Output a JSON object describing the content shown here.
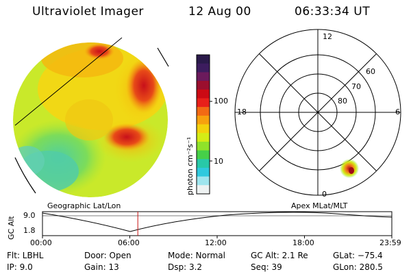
{
  "header": {
    "instrument": "Ultraviolet Imager",
    "date": "12 Aug 00",
    "time": "06:33:34 UT"
  },
  "colorbar": {
    "label": "photon cm⁻²s⁻¹",
    "ticks": [
      "100",
      "10"
    ],
    "colors": [
      "#2a1a4a",
      "#3c1c5e",
      "#6b1a5c",
      "#9b0f2e",
      "#cc0a14",
      "#e8201a",
      "#f26a14",
      "#f7a10e",
      "#f3d20c",
      "#d4ec16",
      "#8fe22a",
      "#46d048",
      "#28c9a8",
      "#2fc9de",
      "#9fe5ee",
      "#eef2f2"
    ]
  },
  "left_panel": {
    "label": "Geographic Lat/Lon"
  },
  "right_panel": {
    "label": "Apex MLat/MLT",
    "mlt_labels": {
      "top": "12",
      "right": "6",
      "left": "18",
      "bottom": "0"
    },
    "lat_labels": [
      "60",
      "70",
      "80"
    ]
  },
  "timeline": {
    "ylabel": "GC Alt",
    "yticks": [
      "9.0",
      "1.8"
    ],
    "xticks": [
      "00:00",
      "06:00",
      "12:00",
      "18:00",
      "23:59"
    ],
    "current_time_fraction": 0.273
  },
  "info": {
    "flt": "Flt: LBHL",
    "ip": "IP:  9.0",
    "door": "Door: Open",
    "gain": "Gain: 13",
    "mode": "Mode: Normal",
    "dsp": "Dsp:      3.2",
    "gc_alt": "GC Alt: 2.1 Re",
    "seq": "Seq: 39",
    "glat": "GLat: −75.4",
    "glon": "GLon: 280.5"
  }
}
